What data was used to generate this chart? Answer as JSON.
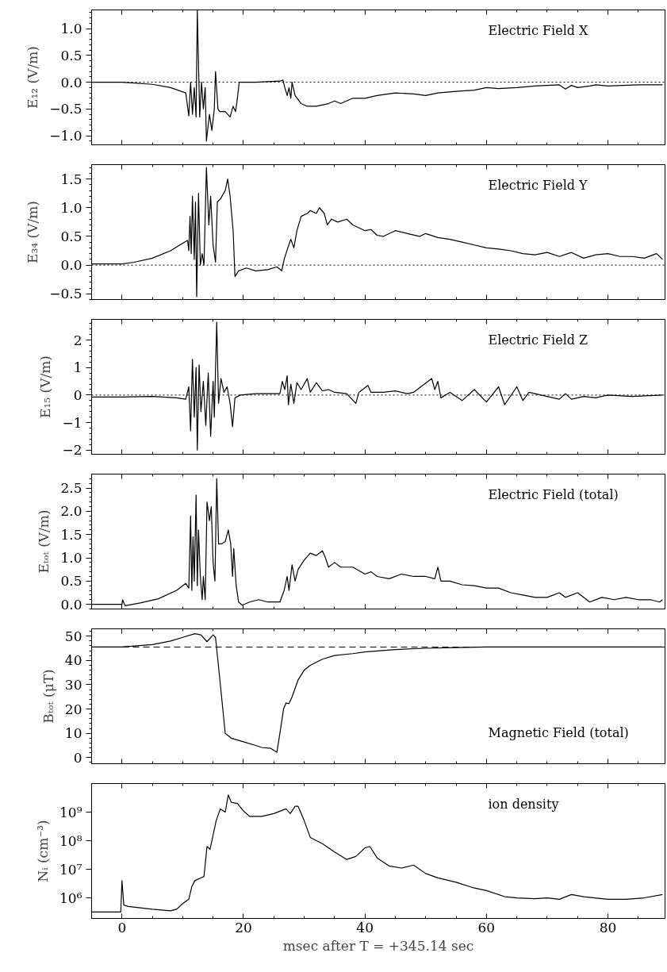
{
  "chart_data": [
    {
      "type": "line",
      "ylabel": "E₁₂ (V/m)",
      "annotations": [
        "Electric Field X"
      ],
      "tick_labels": "y",
      "color": "#000000",
      "xlim": [
        -5,
        89.4
      ],
      "xticks": [
        0,
        20,
        40,
        60,
        80
      ],
      "ylim": [
        -1.17,
        1.35
      ],
      "yticks": [
        {
          "value": -1.0,
          "label": "−1.0"
        },
        {
          "value": -0.5,
          "label": "−0.5"
        },
        {
          "value": 0,
          "label": "0.0"
        },
        {
          "value": 0.5,
          "label": "0.5"
        },
        {
          "value": 1.0,
          "label": "1.0"
        }
      ],
      "ref_lines": [
        {
          "axis": "y",
          "value": 0,
          "color": "#000000",
          "line_style": "dotted"
        }
      ],
      "x": [
        -5,
        0,
        5,
        8,
        10.5,
        11,
        11.3,
        11.6,
        11.9,
        12.2,
        12.4,
        12.8,
        13.1,
        13.4,
        13.7,
        13.9,
        14.4,
        14.8,
        15.2,
        15.4,
        15.8,
        16.1,
        17,
        17.8,
        18.3,
        18.7,
        19.0,
        19.3,
        22,
        26,
        26.5,
        26.8,
        27.2,
        27.5,
        27.8,
        28,
        28.5,
        29.5,
        30.5,
        32,
        34,
        35,
        36,
        38,
        40,
        42,
        45,
        48,
        50,
        52,
        55,
        58,
        60,
        62,
        65,
        68,
        70,
        72,
        73,
        74,
        75,
        77,
        78,
        80,
        85,
        89
      ],
      "values": [
        0,
        0,
        -0.04,
        -0.1,
        -0.2,
        -0.63,
        0.0,
        -0.6,
        -0.1,
        -0.65,
        1.34,
        -0.65,
        0.0,
        -0.5,
        -0.1,
        -1.1,
        -0.6,
        -0.9,
        -0.5,
        0.2,
        -0.5,
        -0.55,
        -0.55,
        -0.65,
        -0.45,
        -0.55,
        -0.3,
        0.0,
        0.0,
        0.02,
        0.04,
        -0.1,
        -0.25,
        -0.1,
        -0.3,
        0.0,
        -0.25,
        -0.4,
        -0.45,
        -0.45,
        -0.4,
        -0.35,
        -0.4,
        -0.3,
        -0.3,
        -0.25,
        -0.2,
        -0.22,
        -0.25,
        -0.2,
        -0.17,
        -0.15,
        -0.1,
        -0.12,
        -0.1,
        -0.07,
        -0.06,
        -0.05,
        -0.13,
        -0.06,
        -0.1,
        -0.07,
        -0.05,
        -0.07,
        -0.05,
        -0.05
      ]
    },
    {
      "type": "line",
      "ylabel": "E₃₄ (V/m)",
      "annotations": [
        "Electric Field Y"
      ],
      "tick_labels": "y",
      "color": "#000000",
      "xlim": [
        -5,
        89.4
      ],
      "xticks": [
        0,
        20,
        40,
        60,
        80
      ],
      "ylim": [
        -0.6,
        1.75
      ],
      "yticks": [
        {
          "value": -0.5,
          "label": "−0.5"
        },
        {
          "value": 0,
          "label": "0.0"
        },
        {
          "value": 0.5,
          "label": "0.5"
        },
        {
          "value": 1.0,
          "label": "1.0"
        },
        {
          "value": 1.5,
          "label": "1.5"
        }
      ],
      "ref_lines": [
        {
          "axis": "y",
          "value": 0,
          "color": "#000000",
          "line_style": "dotted"
        }
      ],
      "x": [
        -5,
        0,
        2,
        5,
        8,
        10,
        10.8,
        11.0,
        11.2,
        11.4,
        11.6,
        11.9,
        12.1,
        12.3,
        12.6,
        12.9,
        13.2,
        13.5,
        13.9,
        14.3,
        14.6,
        15.0,
        15.4,
        15.7,
        16.2,
        17,
        17.4,
        17.8,
        18.3,
        18.6,
        19.2,
        20.5,
        22,
        24,
        25.5,
        26.3,
        26.7,
        27.3,
        27.8,
        28.3,
        28.8,
        29.5,
        30.5,
        31,
        32,
        32.5,
        33.3,
        33.8,
        34.5,
        35.5,
        37,
        38,
        40,
        41,
        42,
        43,
        45,
        47,
        49,
        50,
        52,
        54,
        56,
        58,
        60,
        62,
        64,
        66,
        68,
        70,
        72,
        74,
        76,
        78,
        80,
        82,
        84,
        86,
        88,
        89
      ],
      "values": [
        0.02,
        0.02,
        0.05,
        0.12,
        0.25,
        0.38,
        0.43,
        0.25,
        0.85,
        0.2,
        1.2,
        0.1,
        1.1,
        -0.55,
        1.25,
        0.0,
        0.2,
        0.0,
        1.7,
        0.7,
        1.2,
        0.35,
        0.05,
        1.1,
        1.15,
        1.3,
        1.5,
        1.2,
        0.6,
        -0.2,
        -0.1,
        -0.05,
        -0.1,
        -0.08,
        -0.03,
        -0.1,
        0.1,
        0.3,
        0.45,
        0.3,
        0.6,
        0.85,
        0.9,
        0.95,
        0.9,
        1.0,
        0.9,
        0.7,
        0.8,
        0.75,
        0.8,
        0.7,
        0.6,
        0.62,
        0.52,
        0.5,
        0.6,
        0.55,
        0.5,
        0.55,
        0.48,
        0.45,
        0.4,
        0.35,
        0.3,
        0.28,
        0.25,
        0.2,
        0.18,
        0.22,
        0.15,
        0.22,
        0.12,
        0.18,
        0.2,
        0.15,
        0.15,
        0.12,
        0.2,
        0.1
      ]
    },
    {
      "type": "line",
      "ylabel": "E₁₅ (V/m)",
      "annotations": [
        "Electric Field Z"
      ],
      "tick_labels": "y",
      "color": "#000000",
      "xlim": [
        -5,
        89.4
      ],
      "xticks": [
        0,
        20,
        40,
        60,
        80
      ],
      "ylim": [
        -2.15,
        2.75
      ],
      "yticks": [
        {
          "value": -2,
          "label": "−2"
        },
        {
          "value": -1,
          "label": "−1"
        },
        0,
        1,
        2
      ],
      "ref_lines": [
        {
          "axis": "y",
          "value": 0,
          "color": "#000000",
          "line_style": "dotted"
        }
      ],
      "x": [
        -5,
        0,
        5,
        9,
        10.5,
        11,
        11.3,
        11.6,
        11.9,
        12.2,
        12.4,
        12.7,
        13.0,
        13.4,
        13.8,
        14.2,
        14.6,
        15.0,
        15.2,
        15.6,
        15.9,
        16.3,
        16.8,
        17.3,
        17.8,
        18.2,
        18.6,
        19.5,
        22,
        26,
        26.4,
        26.8,
        27.2,
        27.4,
        27.8,
        28.3,
        28.8,
        29.5,
        30.5,
        31,
        32,
        33,
        34,
        35,
        37,
        38.5,
        39,
        40.5,
        41,
        43,
        45,
        47,
        48,
        51,
        51.5,
        52,
        52.5,
        54,
        56,
        58,
        60,
        62,
        63,
        65,
        66,
        67,
        70,
        72,
        73,
        74,
        76,
        78,
        80,
        84,
        89
      ],
      "values": [
        -0.07,
        -0.07,
        -0.05,
        -0.1,
        -0.15,
        0.3,
        -1.3,
        1.3,
        -0.8,
        1.0,
        -2.0,
        1.1,
        -0.6,
        0.5,
        -1.1,
        0.8,
        -1.5,
        0.5,
        -0.8,
        2.65,
        -0.3,
        0.6,
        0.1,
        0.3,
        -0.3,
        -1.15,
        -0.1,
        0.0,
        0.05,
        0.05,
        0.5,
        0.2,
        0.7,
        -0.35,
        0.4,
        -0.3,
        0.45,
        0.2,
        0.6,
        0.1,
        0.45,
        0.15,
        0.2,
        0.1,
        0.05,
        -0.3,
        0.1,
        0.35,
        0.1,
        0.1,
        0.15,
        0.05,
        0.1,
        0.6,
        0.2,
        0.5,
        -0.1,
        0.1,
        -0.2,
        0.2,
        -0.25,
        0.3,
        -0.35,
        0.3,
        -0.2,
        0.1,
        -0.05,
        -0.15,
        0.05,
        -0.15,
        -0.05,
        -0.1,
        0.0,
        -0.05,
        0.0
      ]
    },
    {
      "type": "line",
      "ylabel": "Eₜₒₜ (V/m)",
      "annotations": [
        "Electric Field (total)"
      ],
      "tick_labels": "y",
      "color": "#000000",
      "xlim": [
        -5,
        89.4
      ],
      "xticks": [
        0,
        20,
        40,
        60,
        80
      ],
      "ylim": [
        -0.1,
        2.8
      ],
      "yticks": [
        {
          "value": 0,
          "label": "0.0"
        },
        0.5,
        {
          "value": 1.0,
          "label": "1.0"
        },
        1.5,
        {
          "value": 2.0,
          "label": "2.0"
        },
        2.5
      ],
      "x": [
        -5,
        0,
        0.1,
        0.5,
        3,
        6,
        9,
        10.5,
        11.0,
        11.3,
        11.5,
        11.7,
        11.9,
        12.2,
        12.4,
        12.6,
        12.9,
        13.2,
        13.4,
        13.7,
        14.0,
        14.4,
        14.7,
        15.0,
        15.3,
        15.6,
        15.9,
        16.4,
        17,
        17.5,
        17.9,
        18.2,
        18.4,
        18.8,
        19.2,
        19.8,
        21,
        22.5,
        24,
        26,
        26.7,
        27.2,
        27.5,
        28,
        28.5,
        29,
        30,
        31,
        32,
        33,
        33.5,
        34,
        35,
        36,
        38,
        40,
        41,
        42,
        44,
        46,
        48,
        50,
        51.5,
        52,
        52.5,
        54,
        56,
        58,
        60,
        62,
        64,
        66,
        68,
        70,
        72,
        73,
        75,
        76,
        77,
        79,
        81,
        83,
        85,
        87,
        88.5,
        89
      ],
      "values": [
        0.0,
        0.0,
        0.1,
        -0.03,
        0.03,
        0.12,
        0.3,
        0.45,
        0.35,
        1.9,
        0.3,
        1.45,
        0.5,
        2.35,
        0.4,
        1.6,
        0.6,
        0.1,
        0.6,
        0.1,
        2.2,
        1.8,
        2.1,
        0.9,
        0.5,
        2.7,
        1.3,
        1.3,
        1.35,
        1.6,
        1.3,
        0.6,
        1.2,
        0.4,
        0.05,
        -0.02,
        0.05,
        0.1,
        0.05,
        0.05,
        0.3,
        0.6,
        0.3,
        0.85,
        0.5,
        0.75,
        0.95,
        1.1,
        1.05,
        1.15,
        1.0,
        0.8,
        0.9,
        0.8,
        0.8,
        0.65,
        0.7,
        0.6,
        0.55,
        0.65,
        0.6,
        0.6,
        0.55,
        0.8,
        0.5,
        0.5,
        0.42,
        0.4,
        0.35,
        0.35,
        0.25,
        0.2,
        0.15,
        0.15,
        0.25,
        0.15,
        0.25,
        0.15,
        0.05,
        0.15,
        0.1,
        0.15,
        0.1,
        0.1,
        0.05,
        0.1
      ]
    },
    {
      "type": "line",
      "ylabel": "Bₜₒₜ (μT)",
      "annotations": [
        "Magnetic Field (total)"
      ],
      "tick_labels": "y",
      "color": "#000000",
      "xlim": [
        -5,
        89.4
      ],
      "xticks": [
        0,
        20,
        40,
        60,
        80
      ],
      "ylim": [
        -2.5,
        53
      ],
      "yticks": [
        0,
        10,
        20,
        30,
        40,
        50
      ],
      "ref_lines": [
        {
          "axis": "y",
          "value": 45.5,
          "color": "#000000",
          "line_style": "dashed"
        }
      ],
      "x": [
        -5,
        0,
        5,
        8,
        10,
        12,
        13,
        14,
        15.0,
        15.4,
        16.2,
        17,
        18,
        20,
        22,
        23,
        24.5,
        25.5,
        26,
        26.6,
        27.0,
        27.5,
        28,
        29,
        30,
        31,
        33,
        35,
        38,
        40,
        45,
        50,
        55,
        60,
        70,
        89
      ],
      "values": [
        45.5,
        45.5,
        46.5,
        48,
        49.5,
        51,
        50.5,
        47.7,
        50.5,
        49.5,
        30,
        10,
        8,
        6.5,
        5,
        4.2,
        3.8,
        2.2,
        10,
        20,
        22.5,
        22.2,
        25,
        32,
        36,
        38,
        40.5,
        42,
        42.8,
        43.5,
        44.5,
        45,
        45.3,
        45.5,
        45.5,
        45.5
      ]
    },
    {
      "type": "line",
      "ylabel": "Nᵢ (cm⁻³)",
      "xlabel": "msec after T = +345.14 sec",
      "annotations": [
        "ion density"
      ],
      "color": "#000000",
      "log": "y",
      "xlim": [
        -5,
        89.4
      ],
      "xticks": [
        0,
        20,
        40,
        60,
        80
      ],
      "ylim": [
        190000,
        10000000000
      ],
      "yticks": [
        {
          "value": 1000000,
          "label": "10⁶"
        },
        {
          "value": 10000000,
          "label": "10⁷"
        },
        {
          "value": 100000000,
          "label": "10⁸"
        },
        {
          "value": 1000000000,
          "label": "10⁹"
        }
      ],
      "x": [
        -5,
        -0.2,
        0,
        0.3,
        1,
        5,
        8,
        9,
        10,
        11,
        11.5,
        12,
        13.5,
        14,
        14.5,
        15.5,
        16.2,
        17,
        17.5,
        18,
        19,
        20,
        21,
        23,
        25,
        27,
        27.7,
        28.5,
        29,
        30,
        31,
        33,
        35,
        37,
        38.5,
        40,
        40.8,
        42,
        44,
        46,
        48,
        50,
        52,
        55,
        58,
        60,
        63,
        65,
        68,
        70,
        72,
        74,
        76,
        80,
        83,
        86,
        89
      ],
      "values": [
        320000.0,
        320000.0,
        4000000.0,
        560000.0,
        500000.0,
        400000.0,
        350000.0,
        400000.0,
        630000.0,
        890000.0,
        2500000.0,
        4000000.0,
        5600000.0,
        63000000.0,
        50000000.0,
        500000000.0,
        1300000000.0,
        1000000000.0,
        4000000000.0,
        2200000000.0,
        2000000000.0,
        1100000000.0,
        710000000.0,
        710000000.0,
        890000000.0,
        1300000000.0,
        890000000.0,
        1600000000.0,
        1600000000.0,
        500000000.0,
        130000000.0,
        79000000.0,
        40000000.0,
        22000000.0,
        28000000.0,
        56000000.0,
        63000000.0,
        25000000.0,
        13000000.0,
        11000000.0,
        14000000.0,
        7100000.0,
        5000000.0,
        3500000.0,
        2200000.0,
        1800000.0,
        1100000.0,
        1000000.0,
        930000.0,
        1000000.0,
        890000.0,
        1300000.0,
        1100000.0,
        890000.0,
        890000.0,
        1000000.0,
        1300000.0
      ]
    }
  ]
}
